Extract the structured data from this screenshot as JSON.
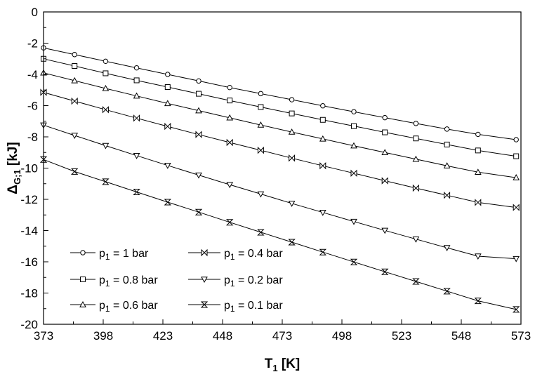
{
  "chart_data": {
    "type": "line",
    "xlabel": "T",
    "xlabel_sub": "1",
    "xlabel_unit": "[K]",
    "ylabel": "Δ",
    "ylabel_sub": "G;1",
    "ylabel_unit": "[kJ]",
    "xlim": [
      373,
      573
    ],
    "ylim": [
      -20,
      0
    ],
    "xticks": [
      373,
      398,
      423,
      448,
      473,
      498,
      523,
      548,
      573
    ],
    "yticks": [
      0,
      -2,
      -4,
      -6,
      -8,
      -10,
      -12,
      -14,
      -16,
      -18,
      -20
    ],
    "grid": false,
    "legend_position": "bottom-left",
    "x": [
      373,
      386,
      399,
      412,
      425,
      438,
      451,
      464,
      477,
      490,
      503,
      516,
      529,
      542,
      555,
      571
    ],
    "series": [
      {
        "legend_prefix": "p",
        "legend_sub": "1",
        "legend_suffix": " = 1 bar",
        "marker": "circle",
        "values": [
          -2.3,
          -2.73,
          -3.16,
          -3.58,
          -4.0,
          -4.42,
          -4.84,
          -5.23,
          -5.62,
          -6.01,
          -6.39,
          -6.77,
          -7.14,
          -7.5,
          -7.84,
          -8.18
        ]
      },
      {
        "legend_prefix": "p",
        "legend_sub": "1",
        "legend_suffix": " = 0.8 bar",
        "marker": "square",
        "values": [
          -3.0,
          -3.46,
          -3.93,
          -4.38,
          -4.81,
          -5.24,
          -5.67,
          -6.09,
          -6.5,
          -6.91,
          -7.31,
          -7.71,
          -8.1,
          -8.49,
          -8.87,
          -9.24
        ]
      },
      {
        "legend_prefix": "p",
        "legend_sub": "1",
        "legend_suffix": " = 0.6 bar",
        "marker": "triangle-up",
        "values": [
          -3.9,
          -4.4,
          -4.9,
          -5.38,
          -5.86,
          -6.32,
          -6.78,
          -7.24,
          -7.69,
          -8.13,
          -8.57,
          -9.0,
          -9.43,
          -9.85,
          -10.26,
          -10.61
        ]
      },
      {
        "legend_prefix": "p",
        "legend_sub": "1",
        "legend_suffix": " = 0.4 bar",
        "marker": "bowtie",
        "values": [
          -5.15,
          -5.71,
          -6.26,
          -6.8,
          -7.33,
          -7.85,
          -8.36,
          -8.86,
          -9.36,
          -9.85,
          -10.33,
          -10.81,
          -11.28,
          -11.74,
          -12.2,
          -12.52
        ]
      },
      {
        "legend_prefix": "p",
        "legend_sub": "1",
        "legend_suffix": " = 0.2 bar",
        "marker": "triangle-down",
        "values": [
          -7.25,
          -7.91,
          -8.56,
          -9.2,
          -9.83,
          -10.45,
          -11.06,
          -11.66,
          -12.26,
          -12.84,
          -13.42,
          -13.99,
          -14.55,
          -15.1,
          -15.64,
          -15.8
        ]
      },
      {
        "legend_prefix": "p",
        "legend_sub": "1",
        "legend_suffix": " = 0.1 bar",
        "marker": "hourglass",
        "values": [
          -9.45,
          -10.22,
          -10.87,
          -11.53,
          -12.18,
          -12.82,
          -13.47,
          -14.11,
          -14.74,
          -15.38,
          -16.01,
          -16.64,
          -17.26,
          -17.88,
          -18.5,
          -19.05
        ]
      }
    ]
  }
}
